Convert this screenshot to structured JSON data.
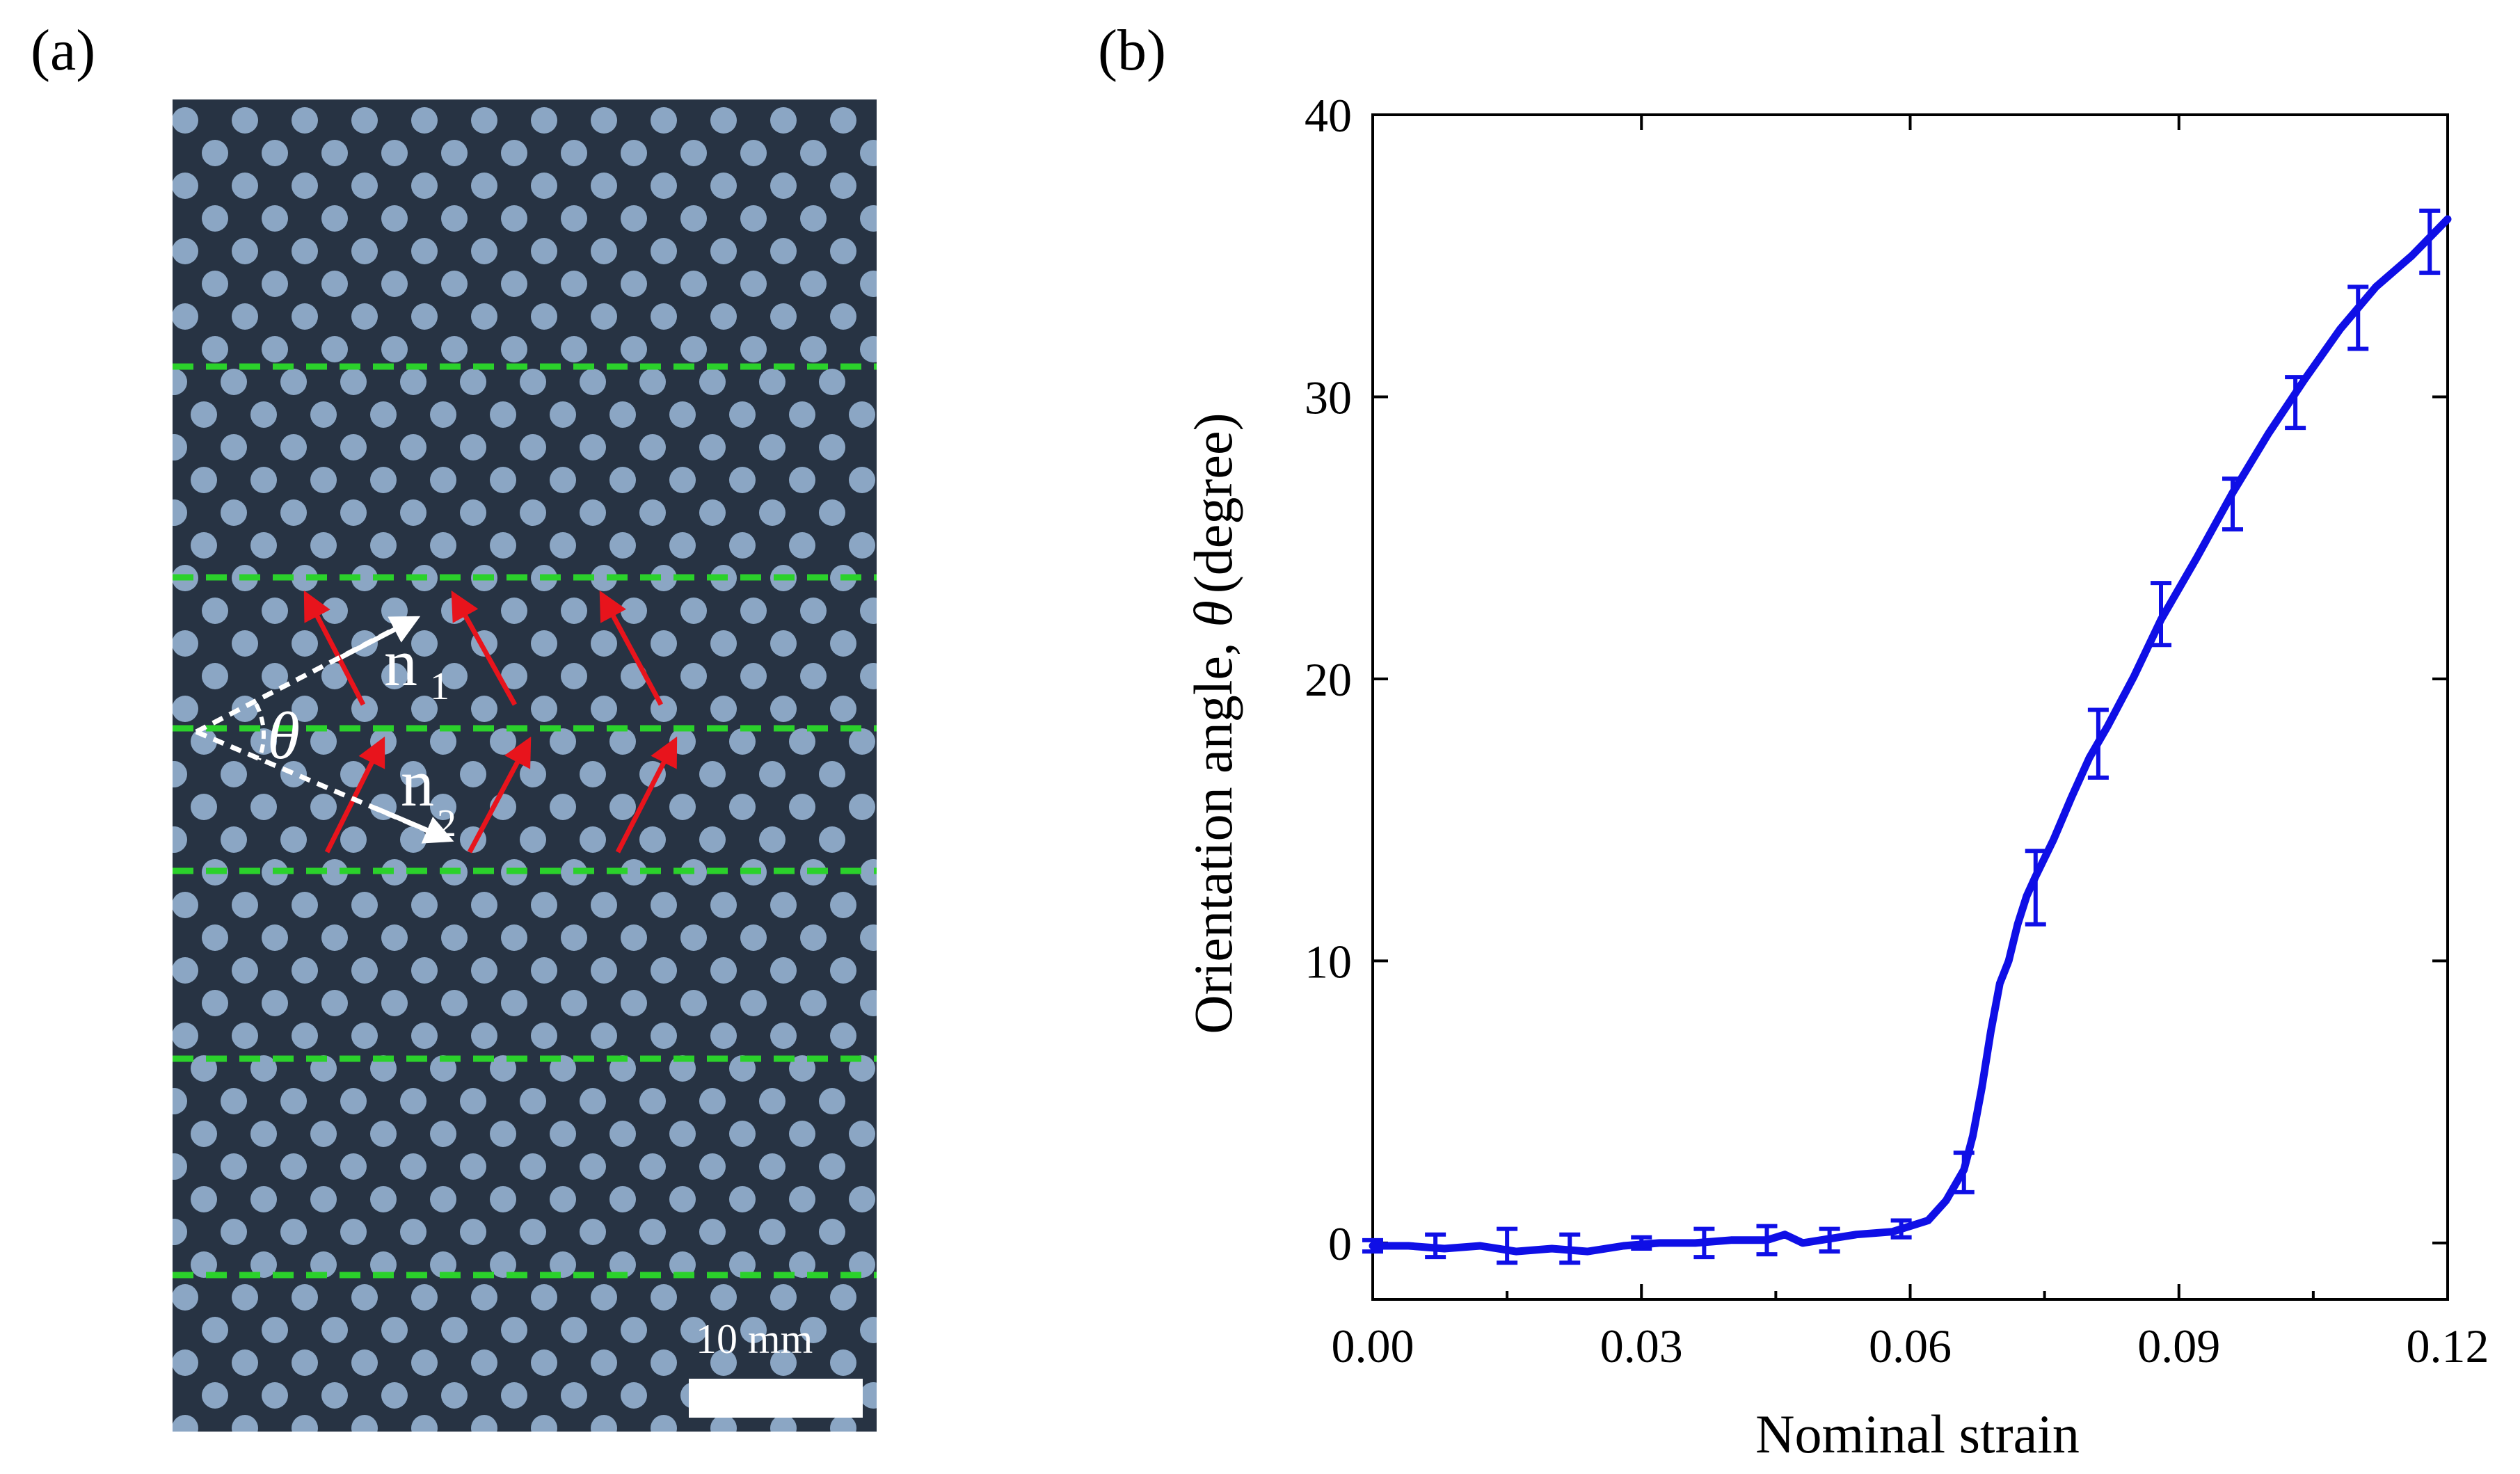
{
  "panel_a": {
    "label": "(a)",
    "scale_bar_label": "10 mm",
    "annotations": {
      "theta": "θ",
      "n1": "n",
      "n1_sub": "1",
      "n2": "n",
      "n2_sub": "2"
    },
    "colors": {
      "background": "#273343",
      "dots": "#8ba6c4",
      "dashed_lines": "#2bd12b",
      "arrows": "#e8141c",
      "vectors": "#ffffff"
    }
  },
  "panel_b": {
    "label": "(b)"
  },
  "chart_data": {
    "type": "line",
    "xlabel": "Nominal strain",
    "ylabel_prefix": "Orientation angle,",
    "ylabel_symbol": "θ",
    "ylabel_unit": "(degree)",
    "xlim": [
      0.0,
      0.12
    ],
    "ylim": [
      -2,
      40
    ],
    "xticks": [
      0.0,
      0.03,
      0.06,
      0.09,
      0.12
    ],
    "xtick_labels": [
      "0.00",
      "0.03",
      "0.06",
      "0.09",
      "0.12"
    ],
    "yticks": [
      0,
      10,
      20,
      30,
      40
    ],
    "ytick_labels": [
      "0",
      "10",
      "20",
      "30",
      "40"
    ],
    "grid": false,
    "line_color": "#0f0fe6",
    "series": [
      {
        "x": [
          0.0,
          0.004,
          0.008,
          0.012,
          0.016,
          0.02,
          0.024,
          0.028,
          0.032,
          0.036,
          0.04,
          0.044,
          0.046,
          0.048,
          0.05,
          0.054,
          0.058,
          0.062,
          0.064,
          0.066,
          0.067,
          0.068,
          0.069,
          0.07,
          0.071,
          0.072,
          0.073,
          0.074,
          0.076,
          0.078,
          0.08,
          0.082,
          0.085,
          0.088,
          0.092,
          0.096,
          0.1,
          0.104,
          0.108,
          0.112,
          0.116,
          0.12
        ],
        "y": [
          -0.1,
          -0.1,
          -0.2,
          -0.1,
          -0.3,
          -0.2,
          -0.3,
          -0.1,
          0.0,
          0.0,
          0.1,
          0.1,
          0.3,
          0.0,
          0.1,
          0.3,
          0.4,
          0.8,
          1.5,
          2.6,
          3.8,
          5.5,
          7.5,
          9.2,
          10.0,
          11.3,
          12.3,
          13.0,
          14.3,
          15.8,
          17.2,
          18.3,
          20.1,
          22.1,
          24.3,
          26.6,
          28.7,
          30.6,
          32.4,
          33.9,
          35.0,
          36.3
        ]
      }
    ],
    "error_bars": {
      "x": [
        0.0,
        0.007,
        0.015,
        0.022,
        0.03,
        0.037,
        0.044,
        0.051,
        0.059,
        0.066,
        0.074,
        0.081,
        0.088,
        0.096,
        0.103,
        0.11,
        0.118
      ],
      "y": [
        -0.1,
        -0.1,
        -0.1,
        -0.2,
        0.0,
        0.0,
        0.1,
        0.1,
        0.5,
        2.5,
        12.6,
        17.7,
        22.3,
        26.2,
        29.8,
        32.8,
        35.5
      ],
      "err": [
        0.2,
        0.4,
        0.6,
        0.5,
        0.2,
        0.5,
        0.5,
        0.4,
        0.3,
        0.7,
        1.3,
        1.2,
        1.1,
        0.9,
        0.9,
        1.1,
        1.1
      ]
    }
  }
}
